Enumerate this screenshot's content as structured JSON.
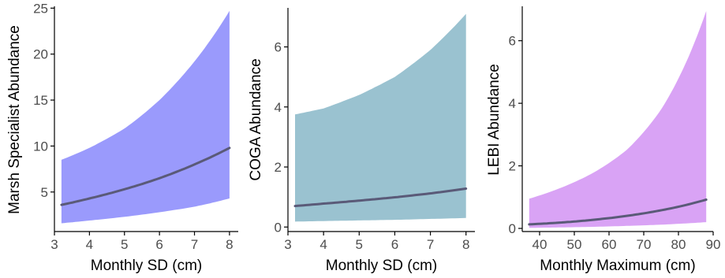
{
  "chart_data": [
    {
      "type": "area",
      "xlabel": "Monthly SD (cm)",
      "ylabel": "Marsh Specialist Abundance",
      "xlim": [
        3.0,
        8.25
      ],
      "ylim": [
        0.7,
        25.2
      ],
      "xticks": [
        3,
        4,
        5,
        6,
        7,
        8
      ],
      "yticks": [
        5,
        10,
        15,
        20,
        25
      ],
      "grid": false,
      "fill_color": "#9a9afc",
      "line_color": "#5a5a78",
      "series": [
        {
          "x": [
            3.2,
            4.0,
            5.0,
            6.0,
            7.0,
            8.0
          ],
          "fit": [
            3.6,
            4.3,
            5.3,
            6.5,
            8.0,
            9.8
          ],
          "lower": [
            1.6,
            1.9,
            2.3,
            2.8,
            3.4,
            4.3
          ],
          "upper": [
            8.5,
            9.8,
            11.9,
            15.0,
            19.2,
            24.7
          ]
        }
      ]
    },
    {
      "type": "area",
      "xlabel": "Monthly SD (cm)",
      "ylabel": "COGA Abundance",
      "xlim": [
        3.0,
        8.25
      ],
      "ylim": [
        -0.15,
        7.3
      ],
      "xticks": [
        3,
        4,
        5,
        6,
        7,
        8
      ],
      "yticks": [
        0,
        2,
        4,
        6
      ],
      "grid": false,
      "fill_color": "#9ac2d0",
      "line_color": "#5a5a78",
      "series": [
        {
          "x": [
            3.2,
            4.0,
            5.0,
            6.0,
            7.0,
            8.0
          ],
          "fit": [
            0.7,
            0.78,
            0.88,
            0.99,
            1.12,
            1.28
          ],
          "lower": [
            0.18,
            0.2,
            0.22,
            0.24,
            0.27,
            0.3
          ],
          "upper": [
            3.75,
            3.95,
            4.4,
            5.0,
            5.9,
            7.1
          ]
        }
      ]
    },
    {
      "type": "area",
      "xlabel": "Monthly Maximum (cm)",
      "ylabel": "LEBI Abundance",
      "xlim": [
        35,
        90
      ],
      "ylim": [
        -0.1,
        7.1
      ],
      "xticks": [
        40,
        50,
        60,
        70,
        80,
        90
      ],
      "yticks": [
        0,
        2,
        4,
        6
      ],
      "grid": false,
      "fill_color": "#d9a3f5",
      "line_color": "#5a5a78",
      "series": [
        {
          "x": [
            37,
            45,
            55,
            65,
            75,
            88
          ],
          "fit": [
            0.13,
            0.18,
            0.27,
            0.4,
            0.58,
            0.92
          ],
          "lower": [
            0.02,
            0.03,
            0.05,
            0.08,
            0.12,
            0.2
          ],
          "upper": [
            0.95,
            1.25,
            1.75,
            2.5,
            3.8,
            6.95
          ]
        }
      ]
    }
  ]
}
